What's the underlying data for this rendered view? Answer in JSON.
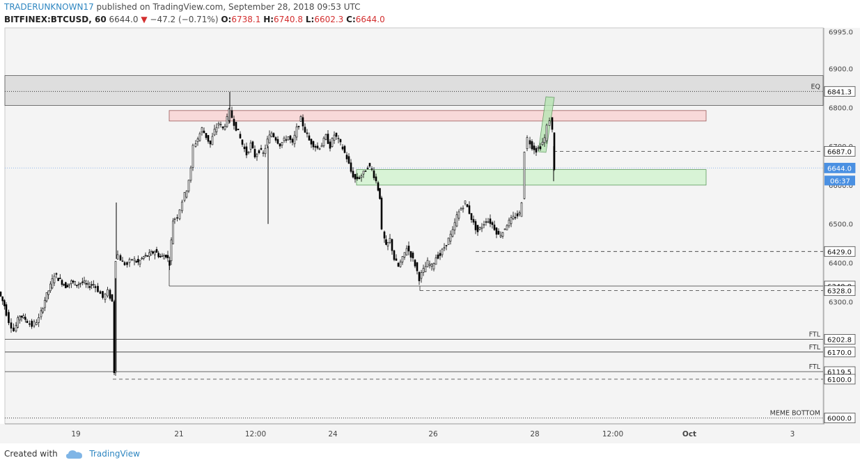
{
  "header": {
    "author": "TRADERUNKNOWN17",
    "published": " published on TradingView.com, September 28, 2018 09:53 UTC",
    "symbol": "BITFINEX:BTCUSD, 60",
    "price": "6644.0",
    "change": "−47.2 (−0.71%)",
    "open_label": "O:",
    "open": "6738.1",
    "high_label": "H:",
    "high": "6740.8",
    "low_label": "L:",
    "low": "6602.3",
    "close_label": "C:",
    "close": "6644.0"
  },
  "footer": {
    "created": "Created with",
    "brand": "TradingView"
  },
  "colors": {
    "up_down_candle": "#000000",
    "resistance_zone": "#f8d7d7",
    "support_zone": "#d8f3d6",
    "eq_band": "#dcdcdc",
    "price_tag": "#4a90e2"
  },
  "chart_data": {
    "type": "candlestick",
    "ylim": [
      5985,
      7005
    ],
    "x_ticks": [
      "19",
      "21",
      "12:00",
      "24",
      "26",
      "28",
      "12:00",
      "Oct",
      "3"
    ],
    "y_ticks": [
      "6995.0",
      "6900.0",
      "6800.0",
      "6700.0",
      "6600.0",
      "6500.0",
      "6400.0",
      "6300.0",
      "6200.0",
      "6100.0",
      "6000.0"
    ],
    "level_tags": [
      {
        "value": 6841.3,
        "label": "6841.3"
      },
      {
        "value": 6687.0,
        "label": "6687.0"
      },
      {
        "value": 6644.0,
        "label": "6644.0",
        "current": true
      },
      {
        "value": 6429.0,
        "label": "6429.0"
      },
      {
        "value": 6340.0,
        "label": "6340.0"
      },
      {
        "value": 6328.0,
        "label": "6328.0"
      },
      {
        "value": 6202.8,
        "label": "6202.8"
      },
      {
        "value": 6170.0,
        "label": "6170.0"
      },
      {
        "value": 6119.5,
        "label": "6119.5"
      },
      {
        "value": 6100.0,
        "label": "6100.0"
      },
      {
        "value": 6000.0,
        "label": "6000.0"
      }
    ],
    "countdown": "06:37",
    "annotations": [
      {
        "text": "EQ",
        "value": 6841.3
      },
      {
        "text": "FTL",
        "value": 6202.8
      },
      {
        "text": "FTL",
        "value": 6170.0
      },
      {
        "text": "FTL",
        "value": 6119.5
      },
      {
        "text": "MEME BOTTOM",
        "value": 6000.0
      }
    ],
    "zones": [
      {
        "kind": "eq_band",
        "y_low": 6805,
        "y_high": 6882
      },
      {
        "kind": "resistance",
        "y_low": 6765,
        "y_high": 6792
      },
      {
        "kind": "support",
        "y_low": 6600,
        "y_high": 6640
      }
    ],
    "price_path": [
      [
        0,
        6325
      ],
      [
        8,
        6290
      ],
      [
        15,
        6250
      ],
      [
        22,
        6225
      ],
      [
        30,
        6265
      ],
      [
        38,
        6255
      ],
      [
        48,
        6238
      ],
      [
        58,
        6255
      ],
      [
        66,
        6305
      ],
      [
        74,
        6340
      ],
      [
        80,
        6370
      ],
      [
        88,
        6355
      ],
      [
        96,
        6340
      ],
      [
        104,
        6350
      ],
      [
        112,
        6345
      ],
      [
        120,
        6350
      ],
      [
        128,
        6340
      ],
      [
        136,
        6345
      ],
      [
        143,
        6330
      ],
      [
        150,
        6310
      ],
      [
        157,
        6325
      ],
      [
        163,
        6300
      ],
      [
        165,
        6120
      ],
      [
        168,
        6410
      ],
      [
        172,
        6420
      ],
      [
        178,
        6400
      ],
      [
        185,
        6395
      ],
      [
        192,
        6410
      ],
      [
        200,
        6400
      ],
      [
        208,
        6415
      ],
      [
        216,
        6420
      ],
      [
        224,
        6430
      ],
      [
        232,
        6415
      ],
      [
        240,
        6420
      ],
      [
        245,
        6400
      ],
      [
        250,
        6510
      ],
      [
        257,
        6520
      ],
      [
        264,
        6560
      ],
      [
        270,
        6590
      ],
      [
        276,
        6640
      ],
      [
        280,
        6700
      ],
      [
        286,
        6720
      ],
      [
        292,
        6745
      ],
      [
        298,
        6725
      ],
      [
        304,
        6705
      ],
      [
        310,
        6740
      ],
      [
        316,
        6760
      ],
      [
        322,
        6745
      ],
      [
        328,
        6770
      ],
      [
        332,
        6790
      ],
      [
        338,
        6760
      ],
      [
        344,
        6735
      ],
      [
        350,
        6705
      ],
      [
        356,
        6680
      ],
      [
        362,
        6705
      ],
      [
        368,
        6675
      ],
      [
        374,
        6690
      ],
      [
        380,
        6680
      ],
      [
        386,
        6715
      ],
      [
        392,
        6735
      ],
      [
        398,
        6720
      ],
      [
        404,
        6705
      ],
      [
        410,
        6715
      ],
      [
        416,
        6725
      ],
      [
        422,
        6705
      ],
      [
        428,
        6745
      ],
      [
        434,
        6770
      ],
      [
        440,
        6740
      ],
      [
        446,
        6715
      ],
      [
        452,
        6705
      ],
      [
        458,
        6695
      ],
      [
        464,
        6705
      ],
      [
        470,
        6725
      ],
      [
        476,
        6700
      ],
      [
        482,
        6730
      ],
      [
        488,
        6715
      ],
      [
        494,
        6695
      ],
      [
        500,
        6670
      ],
      [
        506,
        6635
      ],
      [
        512,
        6615
      ],
      [
        518,
        6620
      ],
      [
        524,
        6630
      ],
      [
        530,
        6650
      ],
      [
        536,
        6640
      ],
      [
        542,
        6610
      ],
      [
        547,
        6570
      ],
      [
        551,
        6480
      ],
      [
        556,
        6440
      ],
      [
        562,
        6460
      ],
      [
        568,
        6410
      ],
      [
        574,
        6390
      ],
      [
        580,
        6410
      ],
      [
        586,
        6440
      ],
      [
        592,
        6420
      ],
      [
        598,
        6395
      ],
      [
        604,
        6360
      ],
      [
        610,
        6380
      ],
      [
        616,
        6400
      ],
      [
        622,
        6390
      ],
      [
        628,
        6415
      ],
      [
        634,
        6420
      ],
      [
        640,
        6440
      ],
      [
        646,
        6460
      ],
      [
        652,
        6480
      ],
      [
        658,
        6520
      ],
      [
        664,
        6540
      ],
      [
        670,
        6555
      ],
      [
        676,
        6530
      ],
      [
        682,
        6500
      ],
      [
        688,
        6480
      ],
      [
        694,
        6495
      ],
      [
        700,
        6510
      ],
      [
        706,
        6505
      ],
      [
        712,
        6490
      ],
      [
        718,
        6470
      ],
      [
        724,
        6480
      ],
      [
        730,
        6500
      ],
      [
        736,
        6510
      ],
      [
        742,
        6520
      ],
      [
        748,
        6525
      ],
      [
        752,
        6560
      ],
      [
        756,
        6690
      ],
      [
        760,
        6720
      ],
      [
        766,
        6700
      ],
      [
        772,
        6690
      ],
      [
        778,
        6700
      ],
      [
        784,
        6720
      ],
      [
        788,
        6750
      ],
      [
        792,
        6770
      ],
      [
        795,
        6740
      ],
      [
        797,
        6644
      ]
    ]
  }
}
